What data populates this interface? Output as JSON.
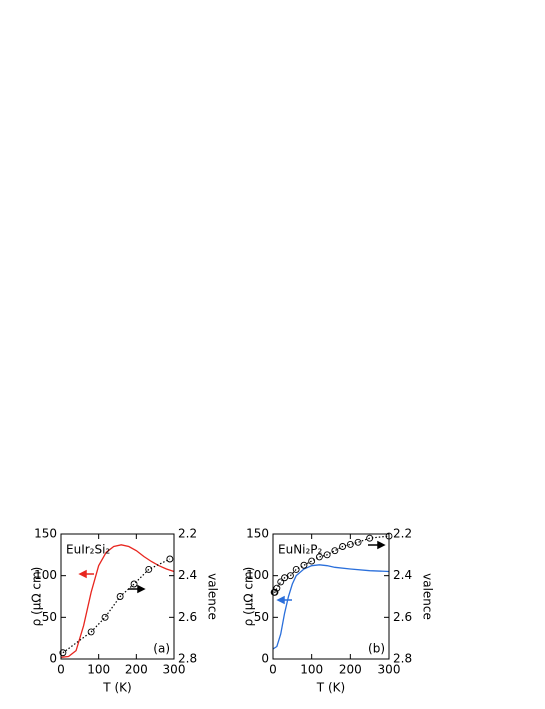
{
  "chart_data": [
    {
      "type": "line",
      "label": "EuIr₂Si₂",
      "panel": "(a)",
      "xlabel": "T (K)",
      "ylabel": "ρ (μΩ cm)",
      "y2label": "valence",
      "xlim": [
        0,
        300
      ],
      "xticks": [
        0,
        100,
        200,
        300
      ],
      "ylim": [
        0,
        150
      ],
      "yticks": [
        0,
        50,
        100,
        150
      ],
      "y2lim": [
        2.8,
        2.2
      ],
      "y2ticks": [
        2.2,
        2.4,
        2.6,
        2.8
      ],
      "series": [
        {
          "color": "#e8261f",
          "x": [
            0,
            20,
            40,
            60,
            80,
            100,
            120,
            140,
            160,
            180,
            200,
            220,
            240,
            260,
            280,
            300
          ],
          "values": [
            2,
            3,
            10,
            40,
            80,
            112,
            128,
            135,
            137,
            135,
            130,
            123,
            117,
            112,
            108,
            105
          ]
        },
        {
          "color": "#000000",
          "axis": "y2",
          "marker": "circle",
          "linestyle": "dotted",
          "x": [
            5,
            80,
            117,
            157,
            194,
            233,
            289
          ],
          "values": [
            2.77,
            2.67,
            2.6,
            2.5,
            2.44,
            2.37,
            2.32
          ]
        }
      ]
    },
    {
      "type": "line",
      "label": "EuNi₂P₂",
      "panel": "(b)",
      "xlabel": "T (K)",
      "ylabel": "ρ (μΩ cm)",
      "y2label": "valence",
      "xlim": [
        0,
        300
      ],
      "xticks": [
        0,
        100,
        200,
        300
      ],
      "ylim": [
        0,
        150
      ],
      "yticks": [
        0,
        50,
        100,
        150
      ],
      "y2lim": [
        2.8,
        2.2
      ],
      "y2ticks": [
        2.2,
        2.4,
        2.6,
        2.8
      ],
      "series": [
        {
          "color": "#2a6fdb",
          "x": [
            0,
            10,
            20,
            30,
            40,
            50,
            60,
            80,
            100,
            120,
            140,
            160,
            200,
            250,
            300
          ],
          "values": [
            12,
            15,
            30,
            55,
            75,
            90,
            100,
            108,
            112,
            113,
            112,
            110,
            108,
            106,
            105
          ]
        },
        {
          "color": "#000000",
          "axis": "y2",
          "marker": "circle",
          "linestyle": "dotted",
          "x": [
            3,
            5,
            10,
            20,
            30,
            45,
            60,
            80,
            100,
            120,
            140,
            160,
            180,
            200,
            220,
            250,
            300
          ],
          "values": [
            2.48,
            2.48,
            2.46,
            2.43,
            2.41,
            2.4,
            2.37,
            2.35,
            2.33,
            2.31,
            2.3,
            2.28,
            2.26,
            2.25,
            2.24,
            2.22,
            2.21
          ]
        }
      ]
    }
  ]
}
